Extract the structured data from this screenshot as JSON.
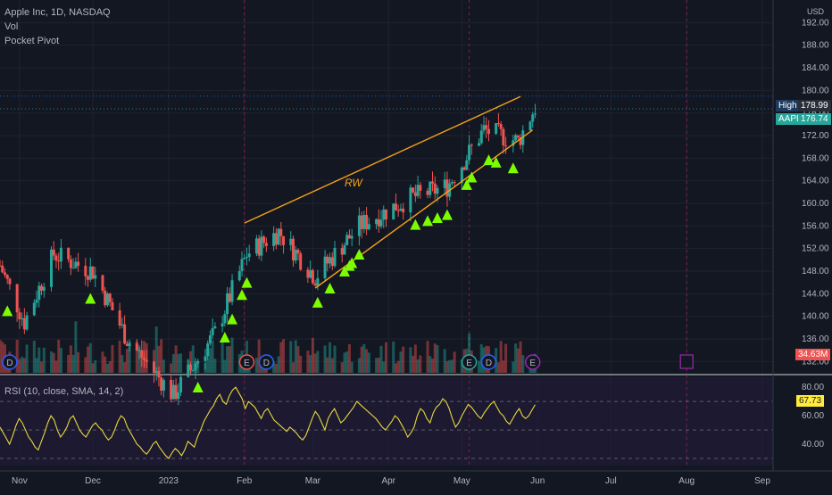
{
  "header": {
    "title": "Apple Inc, 1D, NASDAQ",
    "indicator_1": "Vol",
    "indicator_2": "Pocket Pivot",
    "currency": "USD"
  },
  "rsi_legend": "RSI (10, close, SMA, 14, 2)",
  "price_tags": {
    "high_label": "High",
    "high_value": "178.99",
    "symbol": "AAPL",
    "last_value": "176.74",
    "volume_value": "34.63M",
    "rsi_value": "67.73"
  },
  "annotation": "RW",
  "event_markers": [
    "D",
    "E",
    "D",
    "E",
    "D",
    "E"
  ],
  "colors": {
    "background": "#131722",
    "up": "#26a69a",
    "down": "#ef5350",
    "trendline": "#f7a21b",
    "pivot": "#7cfc00",
    "rsi_line": "#e6d83d",
    "aapl_tag": "#26a69a",
    "high_tag": "#1e3a5f",
    "volume_tag": "#ef5350",
    "rsi_tag": "#ffeb3b",
    "divider": "#d1d4dc"
  },
  "chart_data": [
    {
      "type": "candlestick",
      "title": "Apple Inc, 1D, NASDAQ",
      "ylabel": "USD",
      "price_axis_ticks": [
        "192.00",
        "188.00",
        "184.00",
        "180.00",
        "176.00",
        "172.00",
        "168.00",
        "164.00",
        "160.00",
        "156.00",
        "152.00",
        "148.00",
        "144.00",
        "140.00",
        "136.00",
        "132.00"
      ],
      "ylim": [
        130,
        196
      ],
      "x_ticks": [
        "Nov",
        "Dec",
        "2023",
        "Feb",
        "Mar",
        "Apr",
        "May",
        "Jun",
        "Jul",
        "Aug",
        "Sep"
      ],
      "high_line": 178.99,
      "last_price": 176.74,
      "trendlines": [
        {
          "from": {
            "date": "2023-02-01",
            "price": 156.5
          },
          "to": {
            "date": "2023-05-25",
            "price": 178.9
          }
        },
        {
          "from": {
            "date": "2023-03-02",
            "price": 145.0
          },
          "to": {
            "date": "2023-05-30",
            "price": 173.0
          }
        }
      ],
      "pocket_pivot_dates": [
        "2022-10-27",
        "2022-11-30",
        "2023-01-13",
        "2023-01-24",
        "2023-01-27",
        "2023-01-31",
        "2023-02-02",
        "2023-03-03",
        "2023-03-08",
        "2023-03-14",
        "2023-03-16",
        "2023-03-17",
        "2023-03-20",
        "2023-04-12",
        "2023-04-17",
        "2023-04-21",
        "2023-04-25",
        "2023-05-03",
        "2023-05-05",
        "2023-05-12",
        "2023-05-15",
        "2023-05-22"
      ]
    },
    {
      "type": "line",
      "title": "RSI (10, close, SMA, 14, 2)",
      "y_ticks": [
        "80.00",
        "60.00",
        "40.00"
      ],
      "ylim": [
        25,
        87
      ],
      "bands": [
        30,
        50,
        70
      ],
      "last_value": 67.73,
      "values": [
        52,
        48,
        44,
        40,
        46,
        53,
        58,
        55,
        50,
        45,
        42,
        38,
        36,
        42,
        48,
        55,
        60,
        57,
        50,
        45,
        48,
        52,
        58,
        60,
        55,
        50,
        47,
        45,
        49,
        53,
        55,
        52,
        50,
        46,
        43,
        45,
        50,
        56,
        60,
        58,
        52,
        48,
        44,
        40,
        38,
        35,
        33,
        36,
        40,
        42,
        38,
        35,
        32,
        30,
        34,
        37,
        35,
        32,
        36,
        42,
        40,
        38,
        45,
        50,
        56,
        60,
        64,
        67,
        72,
        75,
        70,
        68,
        74,
        78,
        80,
        76,
        72,
        65,
        70,
        68,
        66,
        62,
        58,
        63,
        65,
        61,
        57,
        55,
        53,
        51,
        49,
        52,
        50,
        48,
        45,
        43,
        46,
        52,
        58,
        63,
        60,
        55,
        50,
        58,
        62,
        65,
        60,
        55,
        57,
        60,
        63,
        66,
        70,
        68,
        66,
        64,
        62,
        60,
        58,
        55,
        52,
        50,
        53,
        56,
        60,
        58,
        54,
        50,
        45,
        48,
        52,
        60,
        65,
        63,
        58,
        55,
        62,
        66,
        68,
        72,
        70,
        65,
        58,
        52,
        55,
        60,
        64,
        68,
        66,
        63,
        60,
        58,
        62,
        65,
        68,
        70,
        66,
        62,
        60,
        56,
        54,
        58,
        62,
        65,
        60,
        58,
        60,
        64,
        67.73
      ]
    }
  ]
}
